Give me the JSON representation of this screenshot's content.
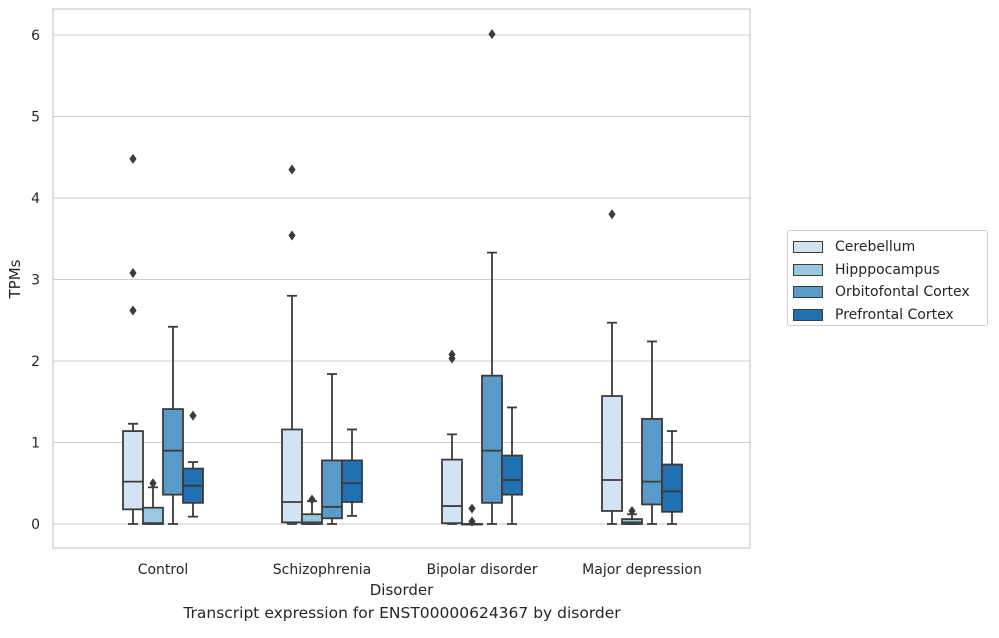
{
  "chart_data": {
    "type": "boxplot",
    "xlabel": "Disorder",
    "ylabel": "TPMs",
    "caption": "Transcript expression for ENST00000624367 by disorder",
    "ylim": [
      -0.3,
      6.3
    ],
    "yticks": [
      0,
      1,
      2,
      3,
      4,
      5,
      6
    ],
    "categories": [
      "Control",
      "Schizophrenia",
      "Bipolar disorder",
      "Major depression"
    ],
    "legend_position": "right",
    "grid": true,
    "series": [
      {
        "name": "Cerebellum",
        "color": "#d3e3f3",
        "boxes": [
          {
            "whislo": 0.0,
            "q1": 0.18,
            "med": 0.52,
            "q3": 1.14,
            "whishi": 1.23,
            "fliers": [
              4.48,
              3.08,
              2.62
            ]
          },
          {
            "whislo": 0.0,
            "q1": 0.02,
            "med": 0.27,
            "q3": 1.16,
            "whishi": 2.8,
            "fliers": [
              4.35,
              3.54
            ]
          },
          {
            "whislo": 0.0,
            "q1": 0.01,
            "med": 0.22,
            "q3": 0.79,
            "whishi": 1.1,
            "fliers": [
              2.08,
              2.03
            ]
          },
          {
            "whislo": 0.0,
            "q1": 0.16,
            "med": 0.54,
            "q3": 1.57,
            "whishi": 2.47,
            "fliers": [
              3.8
            ]
          }
        ]
      },
      {
        "name": "Hipppocampus",
        "color": "#9ac8e0",
        "boxes": [
          {
            "whislo": 0.0,
            "q1": 0.0,
            "med": 0.01,
            "q3": 0.2,
            "whishi": 0.45,
            "fliers": [
              0.5
            ]
          },
          {
            "whislo": 0.0,
            "q1": 0.0,
            "med": 0.02,
            "q3": 0.12,
            "whishi": 0.28,
            "fliers": [
              0.3
            ]
          },
          {
            "whislo": 0.0,
            "q1": 0.0,
            "med": 0.0,
            "q3": 0.0,
            "whishi": 0.0,
            "fliers": [
              0.19,
              0.03
            ]
          },
          {
            "whislo": 0.0,
            "q1": 0.0,
            "med": 0.02,
            "q3": 0.06,
            "whishi": 0.12,
            "fliers": [
              0.16
            ]
          }
        ]
      },
      {
        "name": "Orbitofontal Cortex",
        "color": "#5a9ac8",
        "boxes": [
          {
            "whislo": 0.0,
            "q1": 0.36,
            "med": 0.9,
            "q3": 1.41,
            "whishi": 2.42,
            "fliers": []
          },
          {
            "whislo": 0.0,
            "q1": 0.07,
            "med": 0.21,
            "q3": 0.78,
            "whishi": 1.84,
            "fliers": []
          },
          {
            "whislo": 0.0,
            "q1": 0.26,
            "med": 0.9,
            "q3": 1.82,
            "whishi": 3.33,
            "fliers": [
              6.01
            ]
          },
          {
            "whislo": 0.0,
            "q1": 0.24,
            "med": 0.52,
            "q3": 1.29,
            "whishi": 2.24,
            "fliers": []
          }
        ]
      },
      {
        "name": "Prefrontal Cortex",
        "color": "#2271b5",
        "boxes": [
          {
            "whislo": 0.09,
            "q1": 0.26,
            "med": 0.47,
            "q3": 0.68,
            "whishi": 0.76,
            "fliers": [
              1.33
            ]
          },
          {
            "whislo": 0.1,
            "q1": 0.27,
            "med": 0.5,
            "q3": 0.78,
            "whishi": 1.16,
            "fliers": []
          },
          {
            "whislo": 0.0,
            "q1": 0.36,
            "med": 0.54,
            "q3": 0.84,
            "whishi": 1.43,
            "fliers": []
          },
          {
            "whislo": 0.0,
            "q1": 0.15,
            "med": 0.4,
            "q3": 0.73,
            "whishi": 1.14,
            "fliers": []
          }
        ]
      }
    ]
  }
}
